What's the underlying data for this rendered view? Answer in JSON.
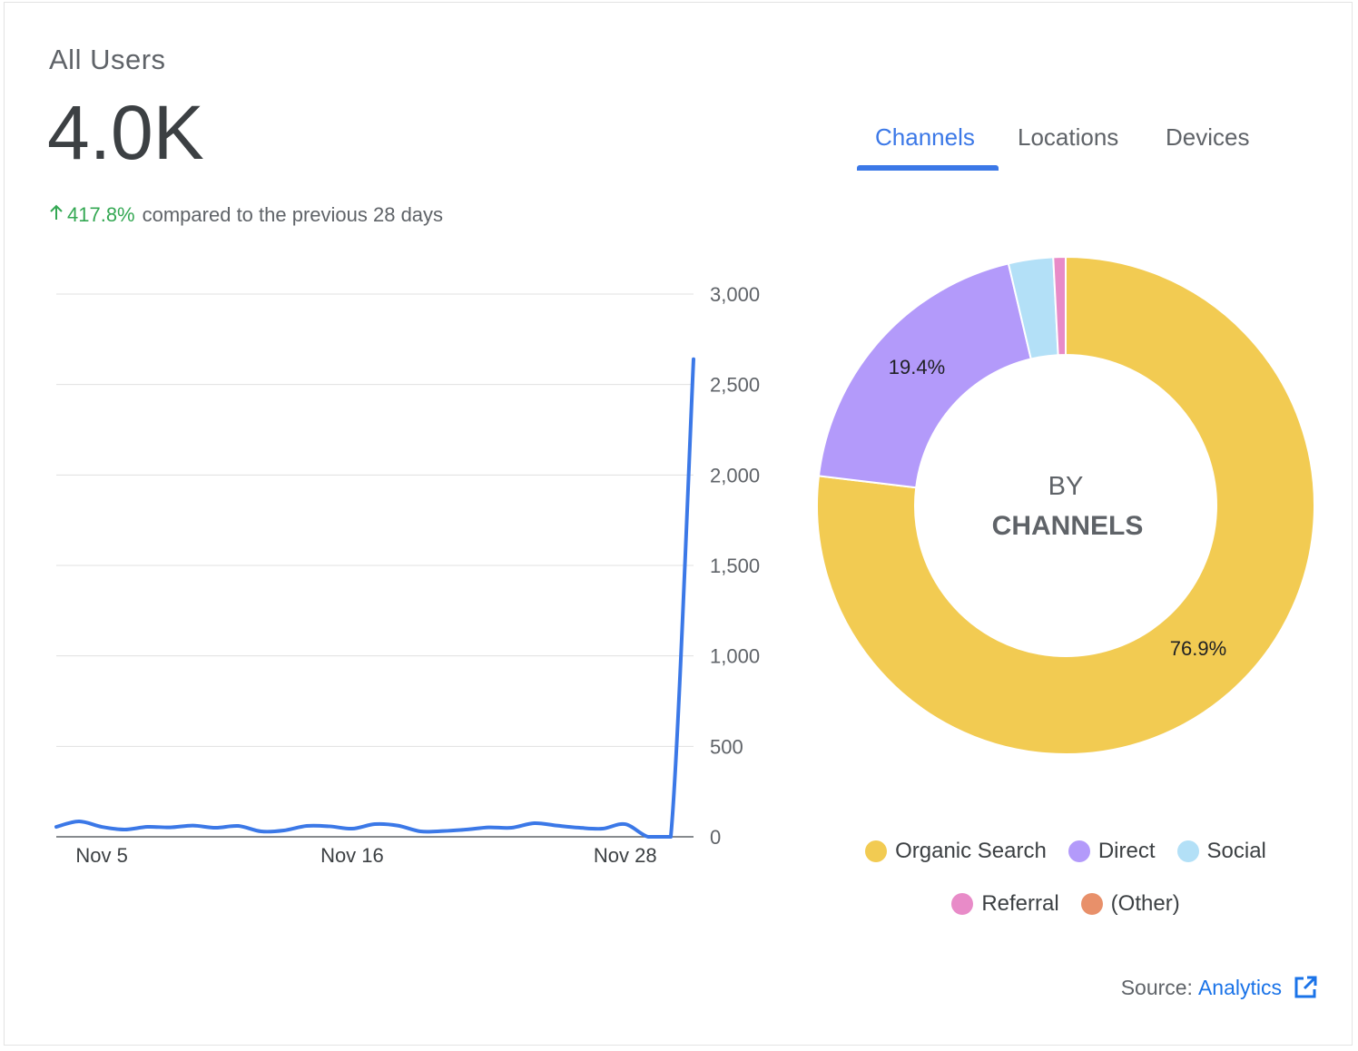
{
  "summary": {
    "label": "All Users",
    "value": "4.0K",
    "delta_pct": "417.8%",
    "delta_text": "compared to the previous 28 days",
    "delta_color": "#34a853"
  },
  "tabs": [
    {
      "label": "Channels",
      "active": true
    },
    {
      "label": "Locations",
      "active": false
    },
    {
      "label": "Devices",
      "active": false
    }
  ],
  "colors": {
    "accent": "#3b78e7",
    "link": "#1a73e8"
  },
  "chart_data": [
    {
      "type": "line",
      "title": "",
      "xlabel": "",
      "ylabel": "",
      "ylim": [
        0,
        3000
      ],
      "yticks": [
        0,
        500,
        1000,
        1500,
        2000,
        2500,
        3000
      ],
      "ytick_labels": [
        "0",
        "500",
        "1,000",
        "1,500",
        "2,000",
        "2,500",
        "3,000"
      ],
      "y_axis_position": "right",
      "grid": true,
      "xtick_labels": [
        "Nov 5",
        "Nov 16",
        "Nov 28"
      ],
      "xtick_indices": [
        2,
        13,
        25
      ],
      "series": [
        {
          "color": "#3b78e7",
          "values": [
            55,
            85,
            55,
            40,
            55,
            52,
            62,
            50,
            60,
            30,
            35,
            60,
            58,
            45,
            70,
            62,
            30,
            32,
            40,
            52,
            50,
            75,
            62,
            50,
            45,
            70,
            0,
            0,
            2640
          ]
        }
      ]
    },
    {
      "type": "pie",
      "donut": true,
      "center_label_top": "BY",
      "center_label_bottom": "CHANNELS",
      "slices": [
        {
          "label": "Organic Search",
          "value": 76.9,
          "color": "#f2cb52",
          "data_label": "76.9%"
        },
        {
          "label": "Direct",
          "value": 19.4,
          "color": "#b39afa",
          "data_label": "19.4%"
        },
        {
          "label": "Social",
          "value": 2.9,
          "color": "#b3e0f7",
          "data_label": ""
        },
        {
          "label": "Referral",
          "value": 0.8,
          "color": "#e88bc8",
          "data_label": ""
        },
        {
          "label": "(Other)",
          "value": 0.0,
          "color": "#e8906a",
          "data_label": ""
        }
      ],
      "legend_position": "bottom"
    }
  ],
  "footer": {
    "source_label": "Source:",
    "source_link": "Analytics",
    "external_icon": "external-link-icon"
  }
}
